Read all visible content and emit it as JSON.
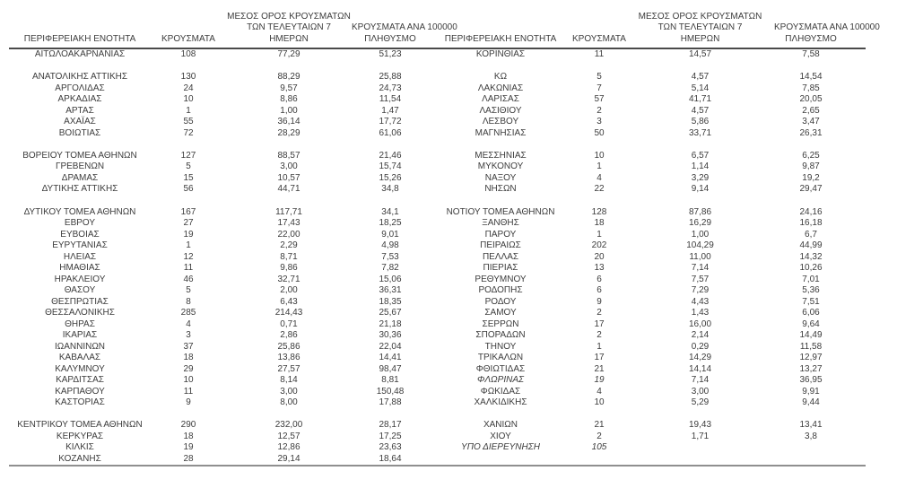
{
  "table": {
    "headers": {
      "region": "ΠΕΡΙΦΕΡΕΙΑΚΗ ΕΝΟΤΗΤΑ",
      "cases": "ΚΡΟΥΣΜΑΤΑ",
      "avg7_line1": "ΜΕΣΟΣ ΟΡΟΣ ΚΡΟΥΣΜΑΤΩΝ",
      "avg7_line2": "ΤΩΝ ΤΕΛΕΥΤΑΙΩΝ 7",
      "avg7_line3": "ΗΜΕΡΩΝ",
      "per100k_line1": "ΚΡΟΥΣΜΑΤΑ ΑΝΑ 100000",
      "per100k_line2": "ΠΛΗΘΥΣΜΟ"
    },
    "rows": [
      {
        "type": "data",
        "left": {
          "region": "ΑΙΤΩΛΟΑΚΑΡΝΑΝΙΑΣ",
          "cases": "108",
          "avg7": "77,29",
          "per100k": "51,23"
        },
        "right": {
          "region": "ΚΟΡΙΝΘΙΑΣ",
          "cases": "11",
          "avg7": "14,57",
          "per100k": "7,58"
        }
      },
      {
        "type": "spacer"
      },
      {
        "type": "data",
        "left": {
          "region": "ΑΝΑΤΟΛΙΚΗΣ ΑΤΤΙΚΗΣ",
          "cases": "130",
          "avg7": "88,29",
          "per100k": "25,88"
        },
        "right": {
          "region": "ΚΩ",
          "cases": "5",
          "avg7": "4,57",
          "per100k": "14,54"
        }
      },
      {
        "type": "data",
        "left": {
          "region": "ΑΡΓΟΛΙΔΑΣ",
          "cases": "24",
          "avg7": "9,57",
          "per100k": "24,73"
        },
        "right": {
          "region": "ΛΑΚΩΝΙΑΣ",
          "cases": "7",
          "avg7": "5,14",
          "per100k": "7,85"
        }
      },
      {
        "type": "data",
        "left": {
          "region": "ΑΡΚΑΔΙΑΣ",
          "cases": "10",
          "avg7": "8,86",
          "per100k": "11,54"
        },
        "right": {
          "region": "ΛΑΡΙΣΑΣ",
          "cases": "57",
          "avg7": "41,71",
          "per100k": "20,05"
        }
      },
      {
        "type": "data",
        "left": {
          "region": "ΑΡΤΑΣ",
          "cases": "1",
          "avg7": "1,00",
          "per100k": "1,47"
        },
        "right": {
          "region": "ΛΑΣΙΘΙΟΥ",
          "cases": "2",
          "avg7": "4,57",
          "per100k": "2,65"
        }
      },
      {
        "type": "data",
        "left": {
          "region": "ΑΧΑΪΑΣ",
          "cases": "55",
          "avg7": "36,14",
          "per100k": "17,72"
        },
        "right": {
          "region": "ΛΕΣΒΟΥ",
          "cases": "3",
          "avg7": "5,86",
          "per100k": "3,47"
        }
      },
      {
        "type": "data",
        "left": {
          "region": "ΒΟΙΩΤΙΑΣ",
          "cases": "72",
          "avg7": "28,29",
          "per100k": "61,06"
        },
        "right": {
          "region": "ΜΑΓΝΗΣΙΑΣ",
          "cases": "50",
          "avg7": "33,71",
          "per100k": "26,31"
        }
      },
      {
        "type": "spacer"
      },
      {
        "type": "data",
        "left": {
          "region": "ΒΟΡΕΙΟΥ ΤΟΜΕΑ ΑΘΗΝΩΝ",
          "cases": "127",
          "avg7": "88,57",
          "per100k": "21,46"
        },
        "right": {
          "region": "ΜΕΣΣΗΝΙΑΣ",
          "cases": "10",
          "avg7": "6,57",
          "per100k": "6,25"
        }
      },
      {
        "type": "data",
        "left": {
          "region": "ΓΡΕΒΕΝΩΝ",
          "cases": "5",
          "avg7": "3,00",
          "per100k": "15,74"
        },
        "right": {
          "region": "ΜΥΚΟΝΟΥ",
          "cases": "1",
          "avg7": "1,14",
          "per100k": "9,87"
        }
      },
      {
        "type": "data",
        "left": {
          "region": "ΔΡΑΜΑΣ",
          "cases": "15",
          "avg7": "10,57",
          "per100k": "15,26"
        },
        "right": {
          "region": "ΝΑΞΟΥ",
          "cases": "4",
          "avg7": "3,29",
          "per100k": "19,2"
        }
      },
      {
        "type": "data",
        "left": {
          "region": "ΔΥΤΙΚΗΣ ΑΤΤΙΚΗΣ",
          "cases": "56",
          "avg7": "44,71",
          "per100k": "34,8"
        },
        "right": {
          "region": "ΝΗΣΩΝ",
          "cases": "22",
          "avg7": "9,14",
          "per100k": "29,47"
        }
      },
      {
        "type": "spacer"
      },
      {
        "type": "data",
        "left": {
          "region": "ΔΥΤΙΚΟΥ ΤΟΜΕΑ ΑΘΗΝΩΝ",
          "cases": "167",
          "avg7": "117,71",
          "per100k": "34,1"
        },
        "right": {
          "region": "ΝΟΤΙΟΥ ΤΟΜΕΑ ΑΘΗΝΩΝ",
          "cases": "128",
          "avg7": "87,86",
          "per100k": "24,16"
        }
      },
      {
        "type": "data",
        "left": {
          "region": "ΕΒΡΟΥ",
          "cases": "27",
          "avg7": "17,43",
          "per100k": "18,25"
        },
        "right": {
          "region": "ΞΑΝΘΗΣ",
          "cases": "18",
          "avg7": "16,29",
          "per100k": "16,18"
        }
      },
      {
        "type": "data",
        "left": {
          "region": "ΕΥΒΟΙΑΣ",
          "cases": "19",
          "avg7": "22,00",
          "per100k": "9,01"
        },
        "right": {
          "region": "ΠΑΡΟΥ",
          "cases": "1",
          "avg7": "1,00",
          "per100k": "6,7"
        }
      },
      {
        "type": "data",
        "left": {
          "region": "ΕΥΡΥΤΑΝΙΑΣ",
          "cases": "1",
          "avg7": "2,29",
          "per100k": "4,98"
        },
        "right": {
          "region": "ΠΕΙΡΑΙΩΣ",
          "cases": "202",
          "avg7": "104,29",
          "per100k": "44,99"
        }
      },
      {
        "type": "data",
        "left": {
          "region": "ΗΛΕΙΑΣ",
          "cases": "12",
          "avg7": "8,71",
          "per100k": "7,53"
        },
        "right": {
          "region": "ΠΕΛΛΑΣ",
          "cases": "20",
          "avg7": "11,00",
          "per100k": "14,32"
        }
      },
      {
        "type": "data",
        "left": {
          "region": "ΗΜΑΘΙΑΣ",
          "cases": "11",
          "avg7": "9,86",
          "per100k": "7,82"
        },
        "right": {
          "region": "ΠΙΕΡΙΑΣ",
          "cases": "13",
          "avg7": "7,14",
          "per100k": "10,26"
        }
      },
      {
        "type": "data",
        "left": {
          "region": "ΗΡΑΚΛΕΙΟΥ",
          "cases": "46",
          "avg7": "32,71",
          "per100k": "15,06"
        },
        "right": {
          "region": "ΡΕΘΥΜΝΟΥ",
          "cases": "6",
          "avg7": "7,57",
          "per100k": "7,01"
        }
      },
      {
        "type": "data",
        "left": {
          "region": "ΘΑΣΟΥ",
          "cases": "5",
          "avg7": "2,00",
          "per100k": "36,31"
        },
        "right": {
          "region": "ΡΟΔΟΠΗΣ",
          "cases": "6",
          "avg7": "7,29",
          "per100k": "5,36"
        }
      },
      {
        "type": "data",
        "left": {
          "region": "ΘΕΣΠΡΩΤΙΑΣ",
          "cases": "8",
          "avg7": "6,43",
          "per100k": "18,35"
        },
        "right": {
          "region": "ΡΟΔΟΥ",
          "cases": "9",
          "avg7": "4,43",
          "per100k": "7,51"
        }
      },
      {
        "type": "data",
        "left": {
          "region": "ΘΕΣΣΑΛΟΝΙΚΗΣ",
          "cases": "285",
          "avg7": "214,43",
          "per100k": "25,67"
        },
        "right": {
          "region": "ΣΑΜΟΥ",
          "cases": "2",
          "avg7": "1,43",
          "per100k": "6,06"
        }
      },
      {
        "type": "data",
        "left": {
          "region": "ΘΗΡΑΣ",
          "cases": "4",
          "avg7": "0,71",
          "per100k": "21,18"
        },
        "right": {
          "region": "ΣΕΡΡΩΝ",
          "cases": "17",
          "avg7": "16,00",
          "per100k": "9,64"
        }
      },
      {
        "type": "data",
        "left": {
          "region": "ΙΚΑΡΙΑΣ",
          "cases": "3",
          "avg7": "2,86",
          "per100k": "30,36"
        },
        "right": {
          "region": "ΣΠΟΡΑΔΩΝ",
          "cases": "2",
          "avg7": "2,14",
          "per100k": "14,49"
        }
      },
      {
        "type": "data",
        "left": {
          "region": "ΙΩΑΝΝΙΝΩΝ",
          "cases": "37",
          "avg7": "25,86",
          "per100k": "22,04"
        },
        "right": {
          "region": "ΤΗΝΟΥ",
          "cases": "1",
          "avg7": "0,29",
          "per100k": "11,58"
        }
      },
      {
        "type": "data",
        "left": {
          "region": "ΚΑΒΑΛΑΣ",
          "cases": "18",
          "avg7": "13,86",
          "per100k": "14,41"
        },
        "right": {
          "region": "ΤΡΙΚΑΛΩΝ",
          "cases": "17",
          "avg7": "14,29",
          "per100k": "12,97"
        }
      },
      {
        "type": "data",
        "left": {
          "region": "ΚΑΛΥΜΝΟΥ",
          "cases": "29",
          "avg7": "27,57",
          "per100k": "98,47"
        },
        "right": {
          "region": "ΦΘΙΩΤΙΔΑΣ",
          "cases": "21",
          "avg7": "14,14",
          "per100k": "13,27"
        }
      },
      {
        "type": "data",
        "left": {
          "region": "ΚΑΡΔΙΤΣΑΣ",
          "cases": "10",
          "avg7": "8,14",
          "per100k": "8,81"
        },
        "right": {
          "region": "ΦΛΩΡΙΝΑΣ",
          "cases": "19",
          "avg7": "7,14",
          "per100k": "36,95",
          "italic": true
        }
      },
      {
        "type": "data",
        "left": {
          "region": "ΚΑΡΠΑΘΟΥ",
          "cases": "11",
          "avg7": "3,00",
          "per100k": "150,48"
        },
        "right": {
          "region": "ΦΩΚΙΔΑΣ",
          "cases": "4",
          "avg7": "3,00",
          "per100k": "9,91"
        }
      },
      {
        "type": "data",
        "left": {
          "region": "ΚΑΣΤΟΡΙΑΣ",
          "cases": "9",
          "avg7": "8,00",
          "per100k": "17,88"
        },
        "right": {
          "region": "ΧΑΛΚΙΔΙΚΗΣ",
          "cases": "10",
          "avg7": "5,29",
          "per100k": "9,44"
        }
      },
      {
        "type": "spacer"
      },
      {
        "type": "data",
        "left": {
          "region": "ΚΕΝΤΡΙΚΟΥ ΤΟΜΕΑ ΑΘΗΝΩΝ",
          "cases": "290",
          "avg7": "232,00",
          "per100k": "28,17"
        },
        "right": {
          "region": "ΧΑΝΙΩΝ",
          "cases": "21",
          "avg7": "19,43",
          "per100k": "13,41"
        }
      },
      {
        "type": "data",
        "left": {
          "region": "ΚΕΡΚΥΡΑΣ",
          "cases": "18",
          "avg7": "12,57",
          "per100k": "17,25"
        },
        "right": {
          "region": "ΧΙΟΥ",
          "cases": "2",
          "avg7": "1,71",
          "per100k": "3,8"
        }
      },
      {
        "type": "data",
        "left": {
          "region": "ΚΙΛΚΙΣ",
          "cases": "19",
          "avg7": "12,86",
          "per100k": "23,63"
        },
        "right": {
          "region": "ΥΠΟ ΔΙΕΡΕΥΝΗΣΗ",
          "cases": "105",
          "avg7": "",
          "per100k": "",
          "italic": true
        }
      },
      {
        "type": "data",
        "left": {
          "region": "ΚΟΖΑΝΗΣ",
          "cases": "28",
          "avg7": "29,14",
          "per100k": "18,64"
        },
        "right": {
          "region": "",
          "cases": "",
          "avg7": "",
          "per100k": ""
        }
      }
    ]
  }
}
